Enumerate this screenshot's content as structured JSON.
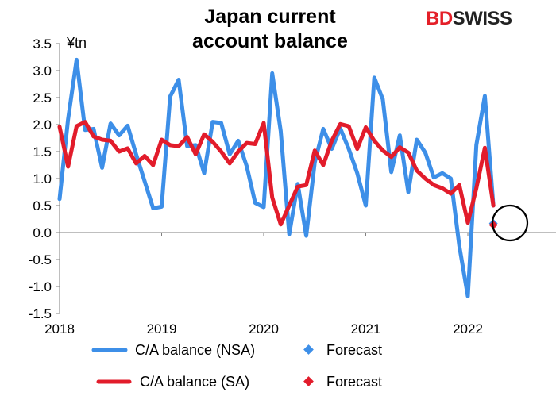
{
  "title_line1": "Japan current",
  "title_line2": "account balance",
  "logo": {
    "part1": "BD",
    "part2": "SWISS"
  },
  "chart_data": {
    "type": "line",
    "title": "Japan current account balance",
    "ylabel": "¥tn",
    "ylim": [
      -1.5,
      3.5
    ],
    "yticks": [
      -1.5,
      -1.0,
      -0.5,
      0.0,
      0.5,
      1.0,
      1.5,
      2.0,
      2.5,
      3.0,
      3.5
    ],
    "ytick_labels": [
      "-1.5",
      "-1.0",
      "-0.5",
      "0.0",
      "0.5",
      "1.0",
      "1.5",
      "2.0",
      "2.5",
      "3.0",
      "3.5"
    ],
    "xlim": [
      0,
      40
    ],
    "xticks": [
      0,
      12,
      24,
      36,
      48
    ],
    "xtick_labels": [
      "2018",
      "2019",
      "2020",
      "2021",
      "2022"
    ],
    "grid": false,
    "legend_position": "bottom",
    "series": [
      {
        "name": "C/A balance (NSA)",
        "color": "#3d8fe8",
        "values": [
          0.62,
          2.1,
          3.2,
          1.9,
          1.92,
          1.2,
          2.02,
          1.8,
          1.98,
          1.45,
          0.95,
          0.45,
          0.48,
          2.52,
          2.83,
          1.6,
          1.62,
          1.1,
          2.05,
          2.03,
          1.45,
          1.7,
          1.23,
          0.55,
          0.47,
          2.95,
          1.88,
          -0.03,
          0.9,
          -0.06,
          1.3,
          1.92,
          1.55,
          1.93,
          1.55,
          1.1,
          0.5,
          2.87,
          2.47,
          1.12,
          1.8,
          0.75,
          1.72,
          1.48,
          1.02,
          1.1,
          1.0,
          -0.25,
          -1.18,
          1.62,
          2.53,
          0.5
        ]
      },
      {
        "name": "C/A balance (SA)",
        "color": "#e21c2b",
        "values": [
          1.96,
          1.22,
          1.97,
          2.05,
          1.78,
          1.72,
          1.7,
          1.5,
          1.56,
          1.28,
          1.42,
          1.25,
          1.72,
          1.62,
          1.6,
          1.77,
          1.45,
          1.82,
          1.68,
          1.5,
          1.28,
          1.5,
          1.66,
          1.64,
          2.03,
          0.65,
          0.15,
          0.5,
          0.85,
          0.88,
          1.52,
          1.25,
          1.7,
          2.01,
          1.97,
          1.55,
          1.95,
          1.7,
          1.52,
          1.4,
          1.58,
          1.48,
          1.15,
          1.0,
          0.88,
          0.82,
          0.72,
          0.88,
          0.18,
          0.82,
          1.57,
          0.5
        ]
      }
    ],
    "forecast": [
      {
        "name": "Forecast",
        "series": "NSA",
        "color": "#3d8fe8",
        "x": 51,
        "value": 0.17
      },
      {
        "name": "Forecast",
        "series": "SA",
        "color": "#e21c2b",
        "x": 51,
        "value": 0.14
      }
    ]
  }
}
